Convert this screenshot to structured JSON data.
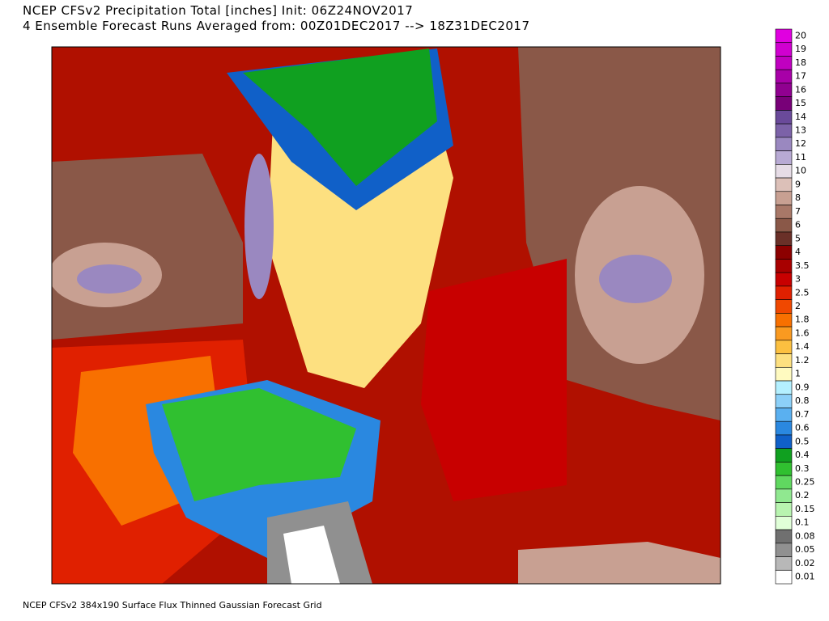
{
  "header": {
    "title_line1": "NCEP CFSv2 Precipitation Total [inches] Init: 06Z24NOV2017",
    "title_line2": "4 Ensemble Forecast Runs Averaged from: 00Z01DEC2017 --> 18Z31DEC2017"
  },
  "footer": "NCEP CFSv2 384x190 Surface Flux Thinned Gaussian Forecast Grid",
  "legend": {
    "items": [
      {
        "label": "20",
        "color": "#e000e0"
      },
      {
        "label": "19",
        "color": "#d000d0"
      },
      {
        "label": "18",
        "color": "#c000c0"
      },
      {
        "label": "17",
        "color": "#a800a8"
      },
      {
        "label": "16",
        "color": "#900090"
      },
      {
        "label": "15",
        "color": "#780078"
      },
      {
        "label": "14",
        "color": "#6a4a9a"
      },
      {
        "label": "13",
        "color": "#7c62a8"
      },
      {
        "label": "12",
        "color": "#9a88c0"
      },
      {
        "label": "11",
        "color": "#b8aad4"
      },
      {
        "label": "10",
        "color": "#e6dce6"
      },
      {
        "label": "9",
        "color": "#dcc0b8"
      },
      {
        "label": "8",
        "color": "#c8a092"
      },
      {
        "label": "7",
        "color": "#a87868"
      },
      {
        "label": "6",
        "color": "#8a5848"
      },
      {
        "label": "5",
        "color": "#6a3028"
      },
      {
        "label": "4",
        "color": "#8c0000"
      },
      {
        "label": "3.5",
        "color": "#a80000"
      },
      {
        "label": "3",
        "color": "#c80000"
      },
      {
        "label": "2.5",
        "color": "#e02000"
      },
      {
        "label": "2",
        "color": "#f04800"
      },
      {
        "label": "1.8",
        "color": "#f87000"
      },
      {
        "label": "1.6",
        "color": "#fa9a20"
      },
      {
        "label": "1.4",
        "color": "#fcc040"
      },
      {
        "label": "1.2",
        "color": "#fde080"
      },
      {
        "label": "1",
        "color": "#fffac0"
      },
      {
        "label": "0.9",
        "color": "#b4f0ff"
      },
      {
        "label": "0.8",
        "color": "#8cd0f8"
      },
      {
        "label": "0.7",
        "color": "#5ab0f0"
      },
      {
        "label": "0.6",
        "color": "#2a88e0"
      },
      {
        "label": "0.5",
        "color": "#1060c8"
      },
      {
        "label": "0.4",
        "color": "#10a020"
      },
      {
        "label": "0.3",
        "color": "#30c030"
      },
      {
        "label": "0.25",
        "color": "#60d860"
      },
      {
        "label": "0.2",
        "color": "#90e890"
      },
      {
        "label": "0.15",
        "color": "#b8f4b0"
      },
      {
        "label": "0.1",
        "color": "#e0ffd8"
      },
      {
        "label": "0.08",
        "color": "#707070"
      },
      {
        "label": "0.05",
        "color": "#909090"
      },
      {
        "label": "0.02",
        "color": "#b8b8b8"
      },
      {
        "label": "0.01",
        "color": "#ffffff"
      }
    ]
  }
}
